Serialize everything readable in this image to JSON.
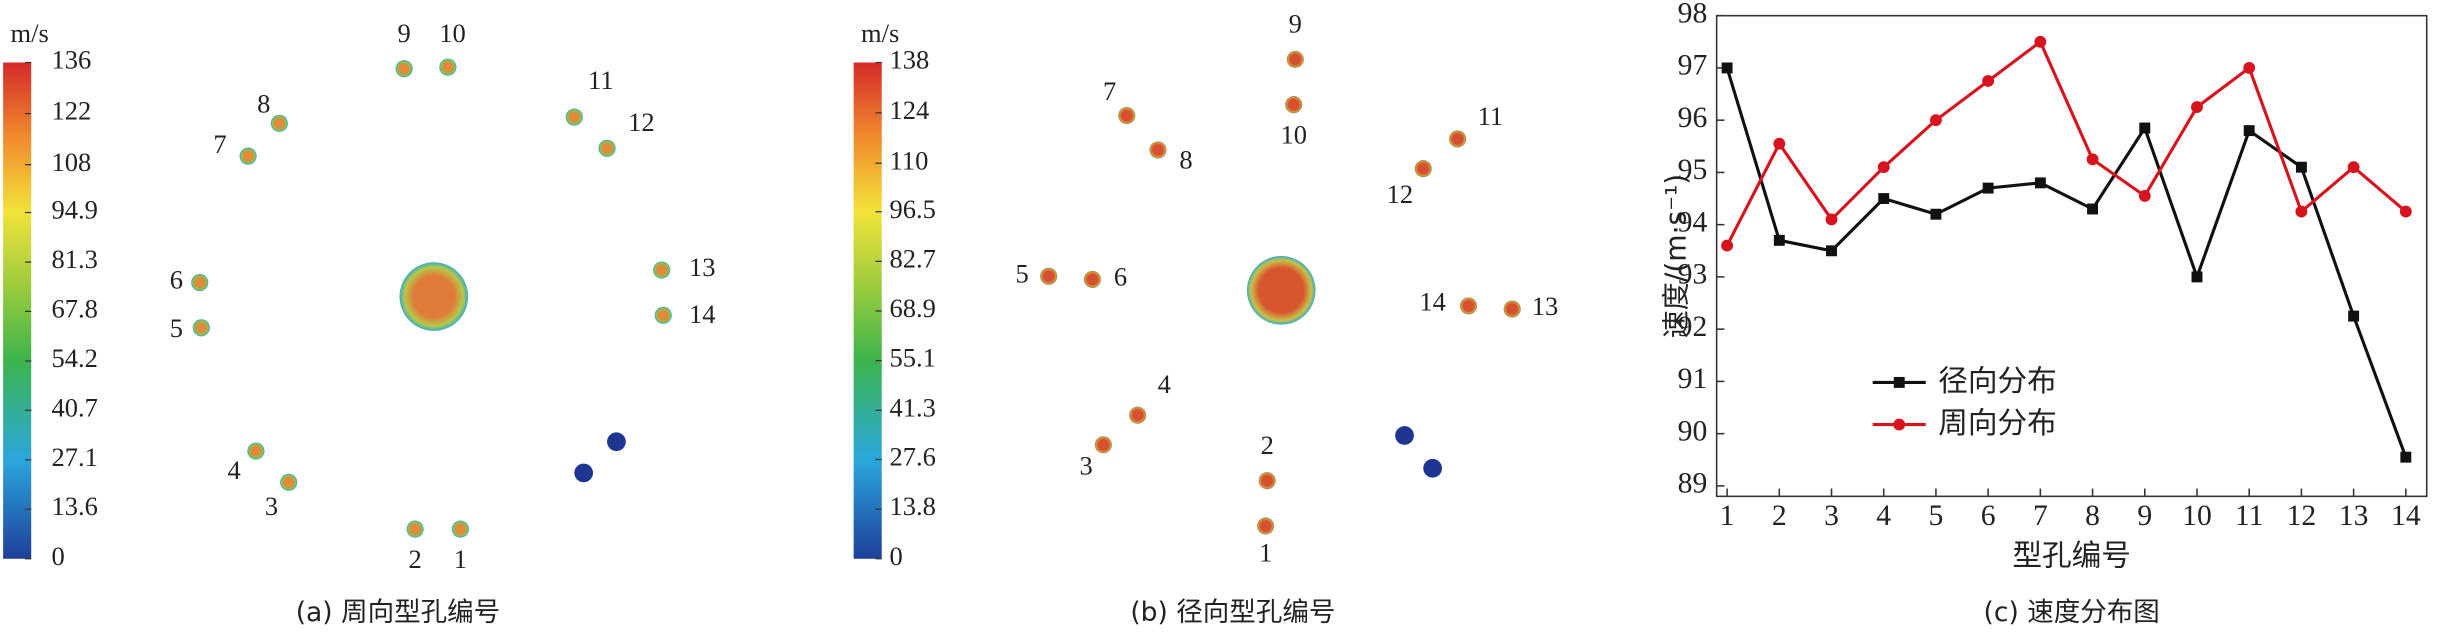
{
  "chart_data": [
    {
      "type": "field",
      "caption": "(a) 周向型孔编号",
      "colorbar_label": "m/s",
      "clim": [
        0,
        136
      ],
      "colorbar_ticks": [
        0,
        13.6,
        27.1,
        40.7,
        54.2,
        67.8,
        81.3,
        94.9,
        108,
        122,
        136
      ],
      "hole_labels": [
        "1",
        "2",
        "3",
        "4",
        "5",
        "6",
        "7",
        "8",
        "9",
        "10",
        "11",
        "12",
        "13",
        "14"
      ]
    },
    {
      "type": "field",
      "caption": "(b) 径向型孔编号",
      "colorbar_label": "m/s",
      "clim": [
        0,
        138
      ],
      "colorbar_ticks": [
        0,
        13.8,
        27.6,
        41.3,
        55.1,
        68.9,
        82.7,
        96.5,
        110,
        124,
        138
      ],
      "hole_labels": [
        "1",
        "2",
        "3",
        "4",
        "5",
        "6",
        "7",
        "8",
        "9",
        "10",
        "11",
        "12",
        "13",
        "14"
      ]
    },
    {
      "type": "line",
      "caption": "(c) 速度分布图",
      "x_label": "型孔编号",
      "y_label": "速度/(m·s⁻¹)",
      "x": [
        1,
        2,
        3,
        4,
        5,
        6,
        7,
        8,
        9,
        10,
        11,
        12,
        13,
        14
      ],
      "xlim": [
        0.8,
        14.4
      ],
      "xticks": [
        1,
        2,
        3,
        4,
        5,
        6,
        7,
        8,
        9,
        10,
        11,
        12,
        13,
        14
      ],
      "ylim": [
        88.8,
        98
      ],
      "yticks": [
        89,
        90,
        91,
        92,
        93,
        94,
        95,
        96,
        97,
        98
      ],
      "legend": "lower-left",
      "series": [
        {
          "name": "径向分布",
          "color": "#111111",
          "marker": "square",
          "values": [
            97.0,
            93.7,
            93.5,
            94.5,
            94.2,
            94.7,
            94.8,
            94.3,
            95.85,
            93.0,
            95.8,
            95.1,
            92.25,
            89.55
          ]
        },
        {
          "name": "周向分布",
          "color": "#d7141e",
          "marker": "circle",
          "values": [
            93.6,
            95.55,
            94.1,
            95.1,
            96.0,
            96.75,
            97.5,
            95.25,
            94.55,
            96.25,
            97.0,
            94.25,
            95.1,
            94.25
          ]
        }
      ]
    }
  ]
}
